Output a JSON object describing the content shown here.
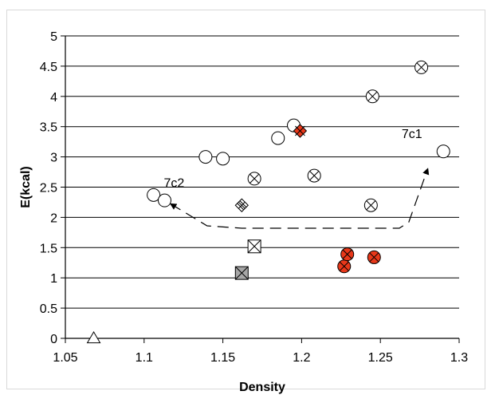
{
  "chart_data": {
    "type": "scatter",
    "title": "",
    "xlabel": "Density",
    "ylabel": "E(kcal)",
    "xlim": [
      1.05,
      1.3
    ],
    "ylim": [
      0,
      5
    ],
    "x_ticks": [
      "1.05",
      "1.1",
      "1.15",
      "1.2",
      "1.25",
      "1.3"
    ],
    "y_ticks": [
      "0",
      "0.5",
      "1",
      "1.5",
      "2",
      "2.5",
      "3",
      "3.5",
      "4",
      "4.5",
      "5"
    ],
    "grid": "horizontal",
    "colors": {
      "red": "#e8381a",
      "gray": "#a6a6a6",
      "axis": "#000000"
    },
    "series": [
      {
        "marker": "open-circle",
        "points": [
          [
            1.106,
            2.37
          ],
          [
            1.113,
            2.28
          ],
          [
            1.139,
            3.0
          ],
          [
            1.15,
            2.97
          ],
          [
            1.185,
            3.31
          ],
          [
            1.195,
            3.52
          ],
          [
            1.29,
            3.09
          ]
        ]
      },
      {
        "marker": "circle-x",
        "points": [
          [
            1.17,
            2.64
          ],
          [
            1.208,
            2.69
          ],
          [
            1.244,
            2.2
          ],
          [
            1.245,
            4.0
          ],
          [
            1.276,
            4.48
          ]
        ]
      },
      {
        "marker": "red-circle-x",
        "points": [
          [
            1.227,
            1.19
          ],
          [
            1.229,
            1.39
          ],
          [
            1.246,
            1.34
          ]
        ]
      },
      {
        "marker": "red-diamond-x",
        "points": [
          [
            1.199,
            3.43
          ]
        ]
      },
      {
        "marker": "diamond-x",
        "points": [
          [
            1.162,
            2.2
          ]
        ]
      },
      {
        "marker": "square-x",
        "points": [
          [
            1.17,
            1.52
          ]
        ]
      },
      {
        "marker": "gray-square-x",
        "points": [
          [
            1.162,
            1.08
          ]
        ]
      },
      {
        "marker": "open-triangle",
        "points": [
          [
            1.068,
            0.0
          ]
        ]
      }
    ],
    "annotations": [
      {
        "text": "7c1",
        "x": 1.27,
        "y": 3.31
      },
      {
        "text": "7c2",
        "x": 1.119,
        "y": 2.5
      }
    ],
    "arrow_path": [
      [
        1.117,
        2.22
      ],
      [
        1.14,
        1.86
      ],
      [
        1.162,
        1.82
      ],
      [
        1.262,
        1.82
      ],
      [
        1.268,
        1.92
      ],
      [
        1.28,
        2.8
      ]
    ]
  }
}
